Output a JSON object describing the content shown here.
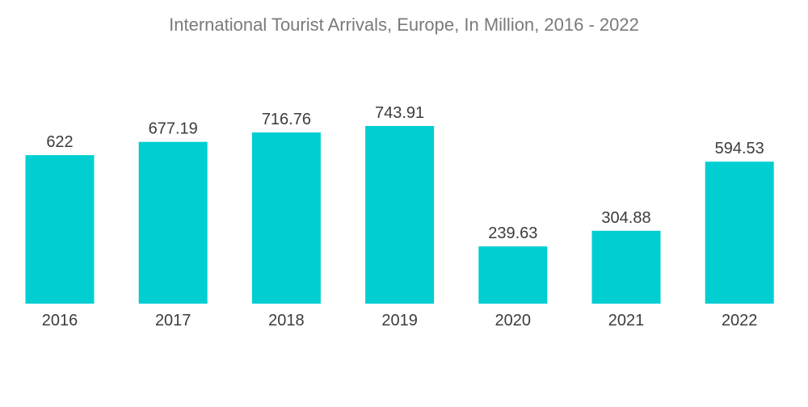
{
  "chart_data": {
    "type": "bar",
    "title": "International Tourist Arrivals, Europe, In Million, 2016 - 2022",
    "categories": [
      "2016",
      "2017",
      "2018",
      "2019",
      "2020",
      "2021",
      "2022"
    ],
    "values": [
      622,
      677.19,
      716.76,
      743.91,
      239.63,
      304.88,
      594.53
    ],
    "value_labels": [
      "622",
      "677.19",
      "716.76",
      "743.91",
      "239.63",
      "304.88",
      "594.53"
    ],
    "xlabel": "",
    "ylabel": "",
    "ylim": [
      0,
      743.91
    ],
    "grid": false,
    "legend": "none",
    "bar_color": "#00CED1"
  }
}
